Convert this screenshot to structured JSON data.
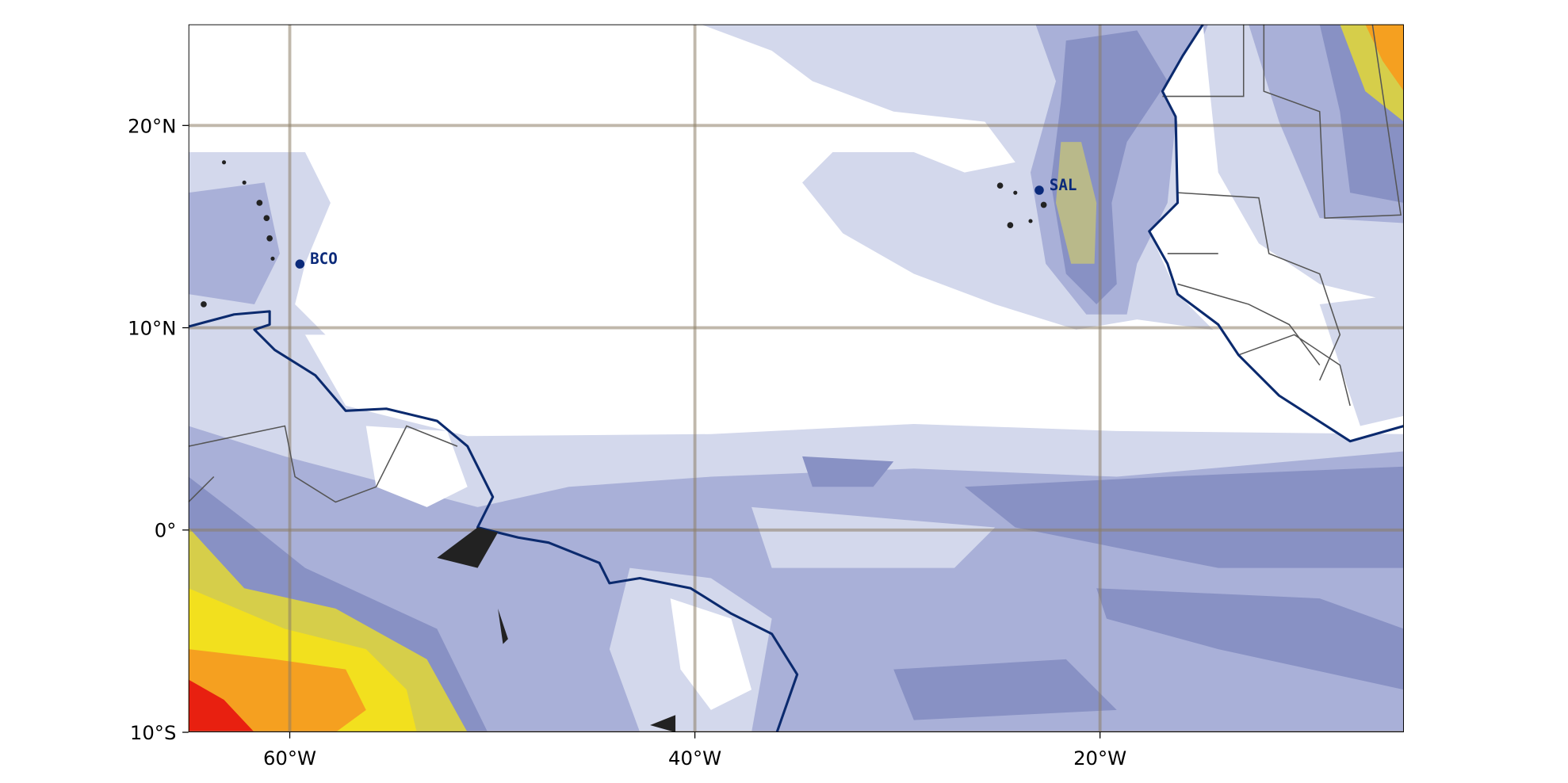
{
  "map": {
    "xlim": [
      -65,
      -5
    ],
    "ylim": [
      -10,
      25
    ],
    "xticks": [
      {
        "value": -60,
        "label": "60°W"
      },
      {
        "value": -40,
        "label": "40°W"
      },
      {
        "value": -20,
        "label": "20°W"
      }
    ],
    "yticks": [
      {
        "value": -10,
        "label": "10°S"
      },
      {
        "value": 0,
        "label": "0°"
      },
      {
        "value": 10,
        "label": "10°N"
      },
      {
        "value": 20,
        "label": "20°N"
      }
    ],
    "stations": [
      {
        "name": "BCO",
        "lon": -59.5,
        "lat": 13.15
      },
      {
        "name": "SAL",
        "lon": -23,
        "lat": 16.8
      }
    ],
    "grid": true
  }
}
